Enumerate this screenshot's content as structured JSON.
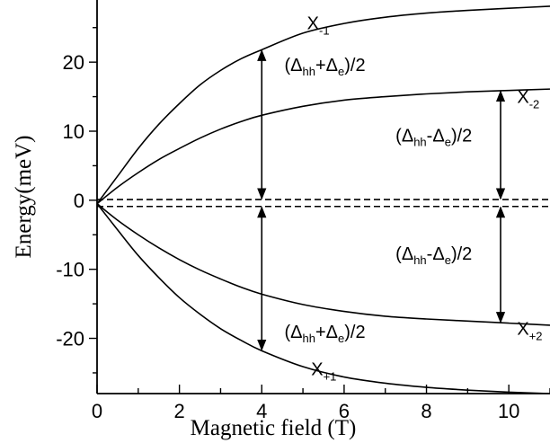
{
  "chart_data": {
    "type": "line",
    "xlabel": "Magnetic field (T)",
    "ylabel": "Energy(meV)",
    "xlim": [
      0,
      11
    ],
    "ylim": [
      -28,
      29
    ],
    "x_ticks": [
      "0",
      "2",
      "4",
      "6",
      "8",
      "10"
    ],
    "x_tick_values": [
      0,
      2,
      4,
      6,
      8,
      10
    ],
    "y_ticks": [
      "20",
      "10",
      "0",
      "-10",
      "-20"
    ],
    "y_tick_values": [
      20,
      10,
      0,
      -10,
      -20
    ],
    "grid": false,
    "legend": "none",
    "series": [
      {
        "name": "X-1",
        "x": [
          0,
          0.5,
          1,
          1.5,
          2,
          2.5,
          3,
          3.5,
          4,
          5,
          6,
          7,
          8,
          9,
          10,
          11
        ],
        "y": [
          -0.5,
          3.5,
          7.5,
          11,
          14,
          16.7,
          18.8,
          20.5,
          21.8,
          24.2,
          25.6,
          26.5,
          27.1,
          27.5,
          27.8,
          28.1
        ],
        "style": "solid"
      },
      {
        "name": "X-2",
        "x": [
          0,
          0.5,
          1,
          1.5,
          2,
          2.5,
          3,
          3.5,
          4,
          5,
          6,
          7,
          8,
          9,
          10,
          11
        ],
        "y": [
          -0.5,
          1.9,
          4,
          5.9,
          7.5,
          9,
          10.3,
          11.4,
          12.3,
          13.6,
          14.5,
          15,
          15.4,
          15.7,
          15.9,
          16.1
        ],
        "style": "solid"
      },
      {
        "name": "X+2",
        "x": [
          0,
          0.5,
          1,
          1.5,
          2,
          2.5,
          3,
          3.5,
          4,
          5,
          6,
          7,
          8,
          9,
          10,
          11
        ],
        "y": [
          -0.5,
          -2.9,
          -5,
          -6.9,
          -8.6,
          -10.1,
          -11.4,
          -12.6,
          -13.6,
          -15.1,
          -16.1,
          -16.8,
          -17.2,
          -17.5,
          -17.8,
          -18.1
        ],
        "style": "solid"
      },
      {
        "name": "X+1",
        "x": [
          0,
          0.5,
          1,
          1.5,
          2,
          2.5,
          3,
          3.5,
          4,
          5,
          6,
          7,
          8,
          9,
          10,
          11
        ],
        "y": [
          -0.5,
          -4.3,
          -8,
          -11.2,
          -14.1,
          -16.5,
          -18.6,
          -20.3,
          -21.8,
          -24.1,
          -25.6,
          -26.5,
          -27.1,
          -27.5,
          -27.8,
          -28
        ],
        "style": "solid"
      },
      {
        "name": "dashed-upper",
        "x": [
          0,
          11
        ],
        "y": [
          0.1,
          0.1
        ],
        "style": "dashed"
      },
      {
        "name": "dashed-lower",
        "x": [
          0,
          11
        ],
        "y": [
          -0.9,
          -0.9
        ],
        "style": "dashed"
      }
    ],
    "arrows": [
      {
        "x": 4,
        "y1": 21.8,
        "y2": 0.1
      },
      {
        "x": 4,
        "y1": -0.9,
        "y2": -21.8
      },
      {
        "x": 9.8,
        "y1": 15.9,
        "y2": 0.1
      },
      {
        "x": 9.8,
        "y1": -0.9,
        "y2": -17.8
      }
    ],
    "annotations": [
      {
        "id": "x-minus-1",
        "base": "X",
        "sub": "-1",
        "x": 5.1,
        "y": 24.8
      },
      {
        "id": "x-minus-2",
        "base": "X",
        "sub": "-2",
        "x": 10.2,
        "y": 14.1
      },
      {
        "id": "x-plus-2",
        "base": "X",
        "sub": "+2",
        "x": 10.2,
        "y": -19.5
      },
      {
        "id": "x-plus-1",
        "base": "X",
        "sub": "+1",
        "x": 5.2,
        "y": -25.3
      },
      {
        "id": "diff-sum-top",
        "parts": [
          [
            "(Δ",
            ""
          ],
          [
            "hh",
            "sub"
          ],
          [
            "+Δ",
            ""
          ],
          [
            "e",
            "sub"
          ],
          [
            ")/2",
            ""
          ]
        ],
        "x": 4.55,
        "y": 18.7
      },
      {
        "id": "diff-mid-top",
        "parts": [
          [
            "(Δ",
            ""
          ],
          [
            "hh",
            "sub"
          ],
          [
            "-Δ",
            ""
          ],
          [
            "e",
            "sub"
          ],
          [
            ")/2",
            ""
          ]
        ],
        "x": 7.25,
        "y": 8.5
      },
      {
        "id": "diff-mid-bottom",
        "parts": [
          [
            "(Δ",
            ""
          ],
          [
            "hh",
            "sub"
          ],
          [
            "-Δ",
            ""
          ],
          [
            "e",
            "sub"
          ],
          [
            ")/2",
            ""
          ]
        ],
        "x": 7.25,
        "y": -8.6
      },
      {
        "id": "diff-sum-bottom",
        "parts": [
          [
            "(Δ",
            ""
          ],
          [
            "hh",
            "sub"
          ],
          [
            "+Δ",
            ""
          ],
          [
            "e",
            "sub"
          ],
          [
            ")/2",
            ""
          ]
        ],
        "x": 4.55,
        "y": -19.9
      }
    ]
  }
}
